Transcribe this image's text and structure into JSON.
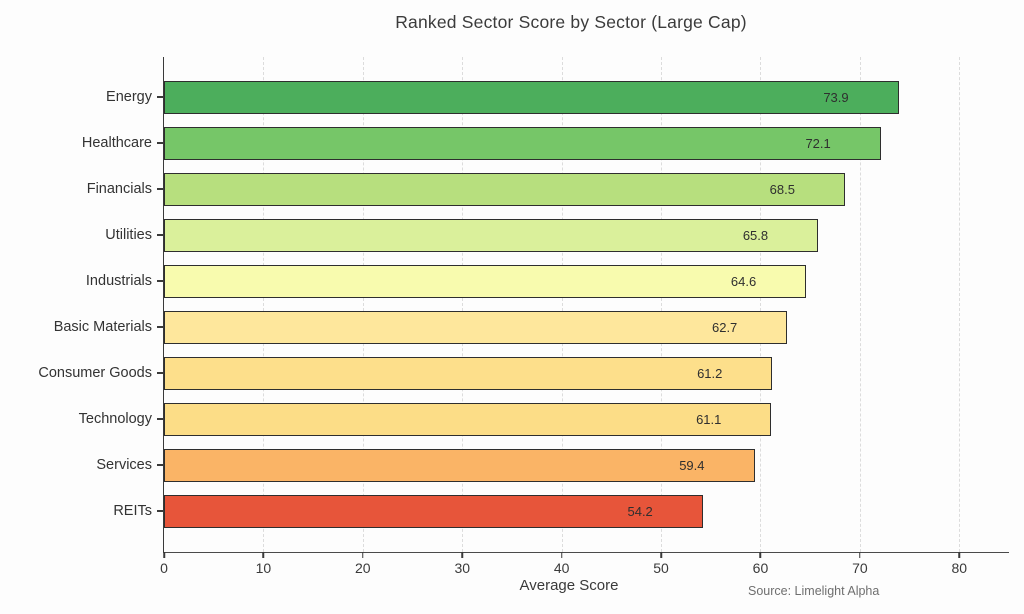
{
  "chart_data": {
    "type": "bar",
    "orientation": "horizontal",
    "title": "Ranked Sector Score by Sector (Large Cap)",
    "categories": [
      "Energy",
      "Healthcare",
      "Financials",
      "Utilities",
      "Industrials",
      "Basic Materials",
      "Consumer Goods",
      "Technology",
      "Services",
      "REITs"
    ],
    "values": [
      73.9,
      72.1,
      68.5,
      65.8,
      64.6,
      62.7,
      61.2,
      61.1,
      59.4,
      54.2
    ],
    "bar_colors": [
      "#4cae5c",
      "#76c668",
      "#b7df7e",
      "#daf09b",
      "#f8fbae",
      "#fee79c",
      "#fddf8b",
      "#fcdd87",
      "#fab466",
      "#e7553a"
    ],
    "bar_edge_color": "#2e2e2e",
    "xlabel": "Average Score",
    "ylabel": "",
    "xlim": [
      0,
      85
    ],
    "xticks": [
      0,
      10,
      20,
      30,
      40,
      50,
      60,
      70,
      80
    ],
    "grid": "vertical-dashed",
    "grid_color": "#dcdcdc",
    "legend": "none",
    "source": "Source: Limelight Alpha"
  }
}
